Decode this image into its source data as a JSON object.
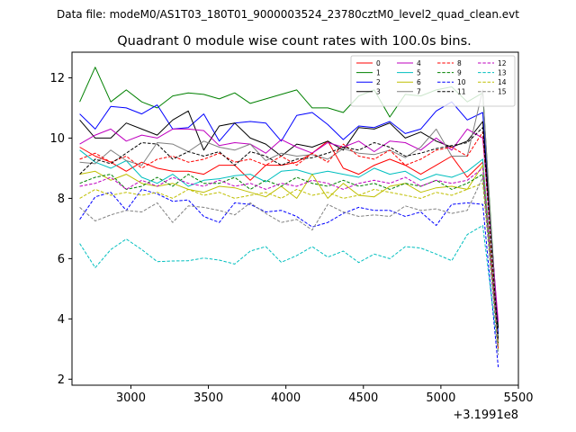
{
  "chart_data": {
    "type": "line",
    "suptitle": "Data file: modeM0/AS1T03_180T01_9000003524_23780cztM0_level2_quad_clean.evt",
    "title": "Quadrant 0 module wise count rates with 100.0s bins.",
    "xlabel": "",
    "ylabel": "",
    "x_offset_label": "+3.1991e8",
    "xlim": [
      2620,
      5500
    ],
    "ylim": [
      1.8,
      12.85
    ],
    "xticks": [
      3000,
      3500,
      4000,
      4500,
      5000,
      5500
    ],
    "xtick_labels": [
      "3000",
      "3500",
      "4000",
      "4500",
      "5000",
      "5500"
    ],
    "yticks": [
      2,
      4,
      6,
      8,
      10,
      12
    ],
    "ytick_labels": [
      "2",
      "4",
      "6",
      "8",
      "10",
      "12"
    ],
    "legend_position": "top-right",
    "x": [
      2670,
      2770,
      2870,
      2970,
      3070,
      3170,
      3270,
      3370,
      3470,
      3570,
      3670,
      3770,
      3870,
      3970,
      4070,
      4170,
      4270,
      4370,
      4470,
      4570,
      4670,
      4770,
      4870,
      4970,
      5070,
      5170,
      5270,
      5370
    ],
    "series": [
      {
        "name": "0",
        "color": "#ff0000",
        "dash": "solid",
        "values": [
          9.7,
          9.4,
          9.2,
          8.9,
          9.2,
          9.0,
          8.9,
          8.9,
          8.8,
          9.1,
          9.1,
          8.6,
          9.1,
          9.1,
          9.2,
          9.5,
          9.9,
          9.0,
          8.8,
          9.1,
          9.3,
          9.1,
          8.8,
          9.1,
          9.4,
          8.7,
          9.2,
          3.1
        ]
      },
      {
        "name": "1",
        "color": "#008000",
        "dash": "solid",
        "values": [
          11.2,
          12.35,
          11.2,
          11.6,
          11.2,
          11.0,
          11.4,
          11.5,
          11.45,
          11.3,
          11.5,
          11.15,
          11.3,
          11.45,
          11.6,
          11.0,
          11.0,
          10.85,
          11.4,
          11.6,
          10.7,
          11.45,
          11.4,
          11.6,
          11.7,
          11.2,
          11.5,
          3.3
        ]
      },
      {
        "name": "2",
        "color": "#0000ff",
        "dash": "solid",
        "values": [
          10.8,
          10.3,
          11.05,
          11.0,
          10.8,
          11.1,
          10.3,
          10.35,
          10.8,
          9.9,
          10.5,
          10.55,
          10.5,
          9.9,
          10.75,
          10.85,
          10.45,
          9.95,
          10.4,
          10.35,
          10.55,
          10.15,
          10.3,
          10.9,
          11.2,
          10.6,
          10.85,
          3.5
        ]
      },
      {
        "name": "3",
        "color": "#000000",
        "dash": "solid",
        "values": [
          10.6,
          10.0,
          10.0,
          10.5,
          10.3,
          10.1,
          10.6,
          10.9,
          9.6,
          10.4,
          10.5,
          10.0,
          9.8,
          9.4,
          9.8,
          9.7,
          9.9,
          9.6,
          10.35,
          10.3,
          10.5,
          10.0,
          10.2,
          9.9,
          9.7,
          9.9,
          10.55,
          3.7
        ]
      },
      {
        "name": "4",
        "color": "#bf00bf",
        "dash": "solid",
        "values": [
          9.8,
          10.1,
          10.3,
          9.9,
          10.1,
          10.0,
          10.3,
          10.3,
          10.25,
          9.75,
          9.85,
          9.8,
          9.5,
          9.95,
          9.7,
          9.5,
          9.85,
          9.7,
          9.9,
          9.55,
          9.9,
          9.85,
          9.6,
          10.0,
          9.6,
          10.3,
          10.0,
          3.9
        ]
      },
      {
        "name": "5",
        "color": "#00bfbf",
        "dash": "solid",
        "values": [
          9.6,
          9.2,
          9.0,
          9.25,
          8.7,
          8.5,
          8.8,
          8.4,
          8.6,
          8.65,
          8.75,
          8.8,
          8.55,
          8.9,
          8.95,
          8.8,
          8.9,
          8.8,
          8.7,
          9.0,
          8.8,
          8.9,
          8.6,
          8.8,
          8.7,
          8.9,
          9.3,
          3.3
        ]
      },
      {
        "name": "6",
        "color": "#bfbf00",
        "dash": "solid",
        "values": [
          8.8,
          8.9,
          8.6,
          8.8,
          8.5,
          8.4,
          8.5,
          8.3,
          8.2,
          8.4,
          8.35,
          8.2,
          8.05,
          8.4,
          8.0,
          8.8,
          8.0,
          8.5,
          8.1,
          8.05,
          8.4,
          8.5,
          8.2,
          8.35,
          8.4,
          8.3,
          9.1,
          3.2
        ]
      },
      {
        "name": "7",
        "color": "#808080",
        "dash": "solid",
        "values": [
          9.2,
          9.15,
          9.6,
          9.25,
          9.1,
          9.85,
          9.8,
          9.55,
          9.9,
          9.7,
          9.6,
          9.8,
          9.25,
          9.5,
          9.4,
          9.45,
          9.3,
          9.65,
          9.5,
          9.45,
          9.6,
          9.35,
          9.7,
          10.3,
          9.4,
          9.4,
          11.6,
          3.0
        ]
      },
      {
        "name": "8",
        "color": "#ff0000",
        "dash": "dashed",
        "values": [
          9.3,
          9.5,
          9.2,
          9.4,
          9.0,
          9.3,
          9.4,
          9.2,
          9.3,
          9.5,
          9.2,
          9.3,
          9.1,
          9.4,
          9.1,
          9.5,
          9.2,
          9.8,
          9.4,
          9.3,
          9.6,
          9.1,
          9.3,
          9.6,
          9.7,
          9.4,
          10.2,
          3.0
        ]
      },
      {
        "name": "9",
        "color": "#008000",
        "dash": "dashed",
        "values": [
          8.5,
          8.7,
          8.8,
          8.3,
          8.4,
          8.7,
          8.4,
          8.8,
          8.5,
          8.5,
          8.7,
          8.3,
          8.6,
          8.4,
          8.7,
          8.5,
          8.4,
          8.6,
          8.4,
          8.5,
          8.3,
          8.5,
          8.4,
          8.6,
          8.3,
          8.5,
          8.8,
          3.2
        ]
      },
      {
        "name": "10",
        "color": "#0000ff",
        "dash": "dashed",
        "values": [
          7.3,
          8.05,
          8.2,
          7.6,
          8.3,
          8.15,
          7.9,
          7.95,
          7.4,
          7.2,
          7.85,
          7.8,
          7.55,
          7.6,
          7.4,
          7.05,
          7.2,
          7.5,
          7.7,
          7.6,
          7.6,
          7.4,
          7.55,
          7.1,
          7.8,
          7.85,
          7.8,
          2.4
        ]
      },
      {
        "name": "11",
        "color": "#000000",
        "dash": "dashed",
        "values": [
          8.8,
          9.3,
          9.15,
          9.5,
          9.85,
          9.8,
          9.3,
          9.55,
          9.4,
          9.55,
          9.1,
          9.55,
          9.4,
          9.1,
          9.3,
          9.35,
          9.5,
          9.7,
          9.6,
          9.85,
          9.7,
          9.4,
          9.5,
          9.65,
          9.75,
          9.85,
          10.35,
          3.3
        ]
      },
      {
        "name": "12",
        "color": "#bf00bf",
        "dash": "dashed",
        "values": [
          8.4,
          8.5,
          8.7,
          8.3,
          8.6,
          8.4,
          8.7,
          8.5,
          8.4,
          8.6,
          8.4,
          8.5,
          8.3,
          8.5,
          8.4,
          8.6,
          8.5,
          8.3,
          8.5,
          8.6,
          8.5,
          8.7,
          8.4,
          8.6,
          8.5,
          8.6,
          9.0,
          3.1
        ]
      },
      {
        "name": "13",
        "color": "#00bfbf",
        "dash": "dashed",
        "values": [
          6.5,
          5.7,
          6.3,
          6.65,
          6.3,
          5.9,
          5.92,
          5.93,
          6.02,
          5.95,
          5.82,
          6.25,
          6.4,
          5.88,
          6.1,
          6.4,
          6.05,
          6.25,
          5.87,
          6.15,
          6.0,
          6.4,
          6.35,
          6.15,
          5.93,
          6.8,
          7.1,
          2.9
        ]
      },
      {
        "name": "14",
        "color": "#bfbf00",
        "dash": "dashed",
        "values": [
          8.0,
          8.3,
          8.1,
          8.2,
          8.1,
          8.2,
          8.0,
          8.3,
          8.1,
          8.2,
          8.0,
          8.1,
          8.2,
          8.0,
          8.3,
          8.1,
          8.2,
          8.0,
          8.1,
          8.3,
          8.2,
          8.1,
          8.0,
          8.2,
          8.1,
          8.3,
          8.5,
          3.0
        ]
      },
      {
        "name": "15",
        "color": "#808080",
        "dash": "dashed",
        "values": [
          7.7,
          7.25,
          7.45,
          7.6,
          7.55,
          7.85,
          7.2,
          7.75,
          7.7,
          7.6,
          7.45,
          7.85,
          7.5,
          7.2,
          7.3,
          6.95,
          7.8,
          7.55,
          7.4,
          7.45,
          7.4,
          7.75,
          7.6,
          7.65,
          7.5,
          7.6,
          8.7,
          2.8
        ]
      }
    ]
  }
}
